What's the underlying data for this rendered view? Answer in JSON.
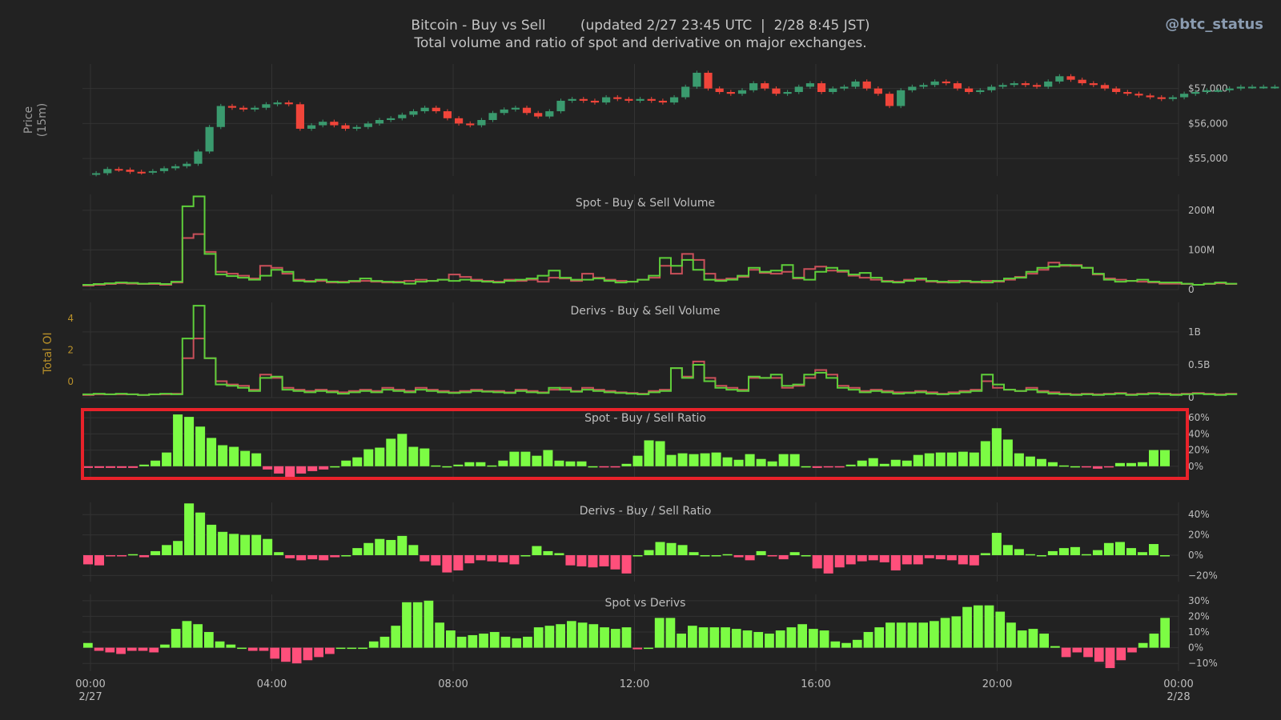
{
  "header": {
    "title": "Bitcoin - Buy vs Sell",
    "updated": "(updated 2/27 23:45 UTC  |  2/28 8:45 JST)",
    "subtitle": "Total volume and ratio of spot and derivative on major exchanges.",
    "handle": "@btc_status"
  },
  "colors": {
    "background": "#222222",
    "buy": "#7cfc44",
    "sell": "#ff4f7b",
    "candle_up": "#3a9a6e",
    "candle_down": "#f0453a",
    "buy_line": "#5ecf3a",
    "sell_line": "#c9505a",
    "oi": "#b8902a",
    "highlight": "#e8222a"
  },
  "x_ticks": [
    {
      "h": 0,
      "label": "00:00",
      "sub": "2/27"
    },
    {
      "h": 4,
      "label": "04:00",
      "sub": ""
    },
    {
      "h": 8,
      "label": "08:00",
      "sub": ""
    },
    {
      "h": 12,
      "label": "12:00",
      "sub": ""
    },
    {
      "h": 16,
      "label": "16:00",
      "sub": ""
    },
    {
      "h": 20,
      "label": "20:00",
      "sub": ""
    },
    {
      "h": 24,
      "label": "00:00",
      "sub": "2/28"
    }
  ],
  "chart_data": [
    {
      "id": "price",
      "type": "candlestick",
      "ylabel": "Price\n(15m)",
      "ylim": [
        54500,
        57700
      ],
      "yticks": [
        {
          "v": 55000,
          "label": "$55,000"
        },
        {
          "v": 56000,
          "label": "$56,000"
        },
        {
          "v": 57000,
          "label": "$57,000"
        }
      ],
      "x_start_hour": 0,
      "interval_hours": 0.25,
      "close": [
        54580,
        54700,
        54680,
        54620,
        54600,
        54640,
        54720,
        54780,
        54850,
        55200,
        55900,
        56500,
        56450,
        56400,
        56450,
        56550,
        56600,
        56550,
        55850,
        55950,
        56050,
        55950,
        55850,
        55900,
        56000,
        56100,
        56150,
        56250,
        56350,
        56450,
        56350,
        56150,
        56000,
        55950,
        56100,
        56300,
        56400,
        56450,
        56300,
        56200,
        56350,
        56650,
        56700,
        56650,
        56600,
        56750,
        56700,
        56650,
        56700,
        56650,
        56600,
        56750,
        57050,
        57450,
        57000,
        56900,
        56850,
        56950,
        57150,
        57000,
        56850,
        56900,
        57050,
        57150,
        56900,
        57000,
        57050,
        57200,
        57000,
        56850,
        56500,
        56950,
        57050,
        57100,
        57200,
        57150,
        57000,
        56900,
        56950,
        57050,
        57100,
        57150,
        57100,
        57050,
        57200,
        57350,
        57250,
        57150,
        57100,
        57000,
        56900,
        56850,
        56800,
        56750,
        56700,
        56750,
        56850,
        56900,
        56950,
        56950,
        57000,
        57050,
        57050,
        57050,
        57050,
        57050
      ]
    },
    {
      "id": "spot-volume",
      "type": "step-line",
      "title": "Spot - Buy & Sell Volume",
      "ylim": [
        0,
        240
      ],
      "yticks": [
        {
          "v": 0,
          "label": "0"
        },
        {
          "v": 100,
          "label": "100M"
        },
        {
          "v": 200,
          "label": "200M"
        }
      ],
      "series": [
        {
          "role": "buy",
          "values": [
            12,
            14,
            16,
            18,
            17,
            15,
            16,
            14,
            20,
            210,
            235,
            90,
            38,
            34,
            30,
            25,
            35,
            50,
            45,
            22,
            20,
            25,
            20,
            18,
            22,
            28,
            22,
            20,
            18,
            15,
            20,
            22,
            25,
            22,
            25,
            22,
            20,
            18,
            22,
            25,
            28,
            35,
            48,
            30,
            25,
            25,
            28,
            22,
            18,
            20,
            25,
            35,
            80,
            60,
            75,
            50,
            25,
            22,
            25,
            35,
            55,
            45,
            48,
            62,
            30,
            25,
            45,
            55,
            48,
            38,
            42,
            30,
            20,
            18,
            22,
            28,
            22,
            20,
            18,
            22,
            20,
            18,
            22,
            28,
            30,
            45,
            55,
            58,
            62,
            60,
            55,
            40,
            25,
            20,
            22,
            25,
            20,
            18,
            18,
            15,
            12,
            15,
            18,
            15
          ]
        },
        {
          "role": "sell",
          "values": [
            10,
            12,
            14,
            16,
            15,
            14,
            14,
            12,
            18,
            130,
            140,
            95,
            45,
            40,
            35,
            28,
            60,
            55,
            40,
            25,
            22,
            22,
            18,
            20,
            20,
            22,
            20,
            18,
            20,
            22,
            25,
            22,
            25,
            38,
            32,
            25,
            22,
            20,
            25,
            22,
            25,
            20,
            30,
            28,
            22,
            40,
            30,
            25,
            22,
            20,
            25,
            30,
            60,
            40,
            90,
            75,
            40,
            25,
            28,
            32,
            50,
            42,
            40,
            45,
            28,
            52,
            58,
            48,
            45,
            35,
            30,
            25,
            22,
            20,
            25,
            25,
            20,
            18,
            22,
            20,
            18,
            22,
            20,
            25,
            32,
            40,
            50,
            68,
            60,
            62,
            55,
            38,
            28,
            25,
            22,
            20,
            18,
            15,
            15,
            14,
            12,
            14,
            16,
            14
          ]
        }
      ]
    },
    {
      "id": "derivs-volume",
      "type": "step-line",
      "title": "Derivs - Buy & Sell Volume",
      "ylim": [
        0,
        1.45
      ],
      "yticks": [
        {
          "v": 0,
          "label": "0"
        },
        {
          "v": 0.5,
          "label": "0.5B"
        },
        {
          "v": 1,
          "label": "1B"
        }
      ],
      "secondary_axis": {
        "label": "Total OI",
        "ylim": [
          -1,
          5
        ],
        "ticks": [
          0,
          2,
          4
        ]
      },
      "series": [
        {
          "role": "buy",
          "values": [
            0.05,
            0.06,
            0.05,
            0.06,
            0.05,
            0.04,
            0.05,
            0.06,
            0.05,
            0.9,
            1.4,
            0.6,
            0.2,
            0.18,
            0.15,
            0.1,
            0.3,
            0.32,
            0.12,
            0.1,
            0.08,
            0.1,
            0.08,
            0.06,
            0.08,
            0.1,
            0.08,
            0.12,
            0.1,
            0.08,
            0.12,
            0.1,
            0.08,
            0.07,
            0.08,
            0.1,
            0.09,
            0.08,
            0.07,
            0.1,
            0.08,
            0.07,
            0.15,
            0.12,
            0.09,
            0.12,
            0.1,
            0.08,
            0.07,
            0.06,
            0.05,
            0.08,
            0.1,
            0.45,
            0.3,
            0.5,
            0.25,
            0.15,
            0.12,
            0.1,
            0.32,
            0.3,
            0.35,
            0.18,
            0.2,
            0.35,
            0.38,
            0.3,
            0.15,
            0.12,
            0.08,
            0.1,
            0.08,
            0.06,
            0.07,
            0.08,
            0.06,
            0.05,
            0.06,
            0.08,
            0.1,
            0.35,
            0.2,
            0.12,
            0.1,
            0.12,
            0.08,
            0.06,
            0.05,
            0.04,
            0.05,
            0.04,
            0.05,
            0.06,
            0.04,
            0.05,
            0.06,
            0.05,
            0.04,
            0.05,
            0.06,
            0.05,
            0.04,
            0.05
          ]
        },
        {
          "role": "sell",
          "values": [
            0.04,
            0.05,
            0.05,
            0.05,
            0.05,
            0.04,
            0.05,
            0.05,
            0.06,
            0.6,
            0.9,
            0.6,
            0.25,
            0.2,
            0.18,
            0.12,
            0.35,
            0.3,
            0.15,
            0.12,
            0.1,
            0.12,
            0.1,
            0.08,
            0.1,
            0.12,
            0.1,
            0.15,
            0.12,
            0.1,
            0.15,
            0.12,
            0.1,
            0.08,
            0.1,
            0.12,
            0.1,
            0.1,
            0.08,
            0.12,
            0.1,
            0.08,
            0.12,
            0.15,
            0.1,
            0.15,
            0.12,
            0.1,
            0.08,
            0.07,
            0.06,
            0.1,
            0.12,
            0.45,
            0.32,
            0.55,
            0.3,
            0.18,
            0.15,
            0.12,
            0.3,
            0.3,
            0.3,
            0.15,
            0.18,
            0.3,
            0.42,
            0.35,
            0.18,
            0.15,
            0.1,
            0.12,
            0.1,
            0.08,
            0.08,
            0.1,
            0.08,
            0.06,
            0.08,
            0.1,
            0.12,
            0.25,
            0.15,
            0.12,
            0.1,
            0.15,
            0.1,
            0.08,
            0.06,
            0.05,
            0.06,
            0.05,
            0.06,
            0.07,
            0.05,
            0.06,
            0.07,
            0.06,
            0.05,
            0.06,
            0.07,
            0.06,
            0.05,
            0.06
          ]
        }
      ]
    },
    {
      "id": "spot-ratio",
      "type": "bar",
      "title": "Spot - Buy / Sell Ratio",
      "highlighted": true,
      "ylim": [
        -0.15,
        0.7
      ],
      "yticks": [
        {
          "v": 0,
          "label": "0%"
        },
        {
          "v": 0.2,
          "label": "20%"
        },
        {
          "v": 0.4,
          "label": "40%"
        },
        {
          "v": 0.6,
          "label": "60%"
        }
      ],
      "values": [
        -0.02,
        -0.02,
        -0.02,
        -0.02,
        -0.02,
        0.02,
        0.07,
        0.17,
        0.64,
        0.61,
        0.49,
        0.35,
        0.26,
        0.24,
        0.19,
        0.16,
        -0.04,
        -0.09,
        -0.13,
        -0.09,
        -0.06,
        -0.04,
        0,
        0.07,
        0.11,
        0.21,
        0.23,
        0.34,
        0.4,
        0.24,
        0.22,
        0.01,
        0,
        0.02,
        0.05,
        0.05,
        0.01,
        0.07,
        0.18,
        0.18,
        0.13,
        0.2,
        0.07,
        0.06,
        0.06,
        0,
        -0.01,
        -0.01,
        0.03,
        0.13,
        0.32,
        0.31,
        0.14,
        0.16,
        0.15,
        0.16,
        0.17,
        0.11,
        0.08,
        0.15,
        0.09,
        0.06,
        0.15,
        0.15,
        0,
        -0.02,
        -0.01,
        -0.01,
        0.02,
        0.07,
        0.1,
        0.03,
        0.08,
        0.07,
        0.14,
        0.16,
        0.17,
        0.17,
        0.18,
        0.17,
        0.31,
        0.47,
        0.33,
        0.16,
        0.12,
        0.09,
        0.05,
        0.01,
        0,
        -0.01,
        -0.03,
        -0.01,
        0.04,
        0.04,
        0.05,
        0.2,
        0.2
      ]
    },
    {
      "id": "derivs-ratio",
      "type": "bar",
      "title": "Derivs - Buy / Sell Ratio",
      "ylim": [
        -0.26,
        0.52
      ],
      "yticks": [
        {
          "v": -0.2,
          "label": "−20%"
        },
        {
          "v": 0,
          "label": "0%"
        },
        {
          "v": 0.2,
          "label": "20%"
        },
        {
          "v": 0.4,
          "label": "40%"
        }
      ],
      "values": [
        -0.09,
        -0.1,
        -0.01,
        -0.01,
        0.01,
        -0.02,
        0.04,
        0.1,
        0.14,
        0.51,
        0.42,
        0.3,
        0.23,
        0.21,
        0.2,
        0.2,
        0.16,
        0.03,
        -0.03,
        -0.05,
        -0.04,
        -0.05,
        -0.02,
        0,
        0.07,
        0.12,
        0.16,
        0.15,
        0.19,
        0.1,
        -0.06,
        -0.1,
        -0.17,
        -0.15,
        -0.08,
        -0.05,
        -0.06,
        -0.07,
        -0.09,
        0,
        0.09,
        0.04,
        0.02,
        -0.1,
        -0.11,
        -0.12,
        -0.11,
        -0.14,
        -0.18,
        0,
        0.05,
        0.13,
        0.12,
        0.1,
        0.03,
        0,
        0,
        0.01,
        -0.02,
        -0.05,
        0.04,
        -0.01,
        -0.04,
        0.03,
        0,
        -0.13,
        -0.18,
        -0.12,
        -0.09,
        -0.06,
        -0.05,
        -0.07,
        -0.15,
        -0.09,
        -0.09,
        -0.03,
        -0.04,
        -0.05,
        -0.09,
        -0.1,
        0.02,
        0.22,
        0.1,
        0.06,
        0.01,
        0,
        0.04,
        0.07,
        0.08,
        0.01,
        0.05,
        0.12,
        0.13,
        0.07,
        0.03,
        0.11,
        0
      ]
    },
    {
      "id": "spot-vs-derivs",
      "type": "bar",
      "title": "Spot vs Derivs",
      "ylim": [
        -0.15,
        0.34
      ],
      "yticks": [
        {
          "v": -0.1,
          "label": "−10%"
        },
        {
          "v": 0,
          "label": "0%"
        },
        {
          "v": 0.1,
          "label": "10%"
        },
        {
          "v": 0.2,
          "label": "20%"
        },
        {
          "v": 0.3,
          "label": "30%"
        }
      ],
      "values": [
        0.03,
        -0.02,
        -0.03,
        -0.04,
        -0.02,
        -0.02,
        -0.03,
        0.02,
        0.12,
        0.17,
        0.15,
        0.1,
        0.04,
        0.02,
        0,
        -0.02,
        -0.02,
        -0.07,
        -0.09,
        -0.1,
        -0.08,
        -0.06,
        -0.04,
        0,
        0,
        0,
        0.04,
        0.07,
        0.14,
        0.29,
        0.29,
        0.3,
        0.16,
        0.11,
        0.07,
        0.08,
        0.09,
        0.1,
        0.07,
        0.06,
        0.07,
        0.13,
        0.14,
        0.15,
        0.17,
        0.16,
        0.15,
        0.13,
        0.12,
        0.13,
        -0.01,
        0,
        0.19,
        0.19,
        0.09,
        0.14,
        0.13,
        0.13,
        0.13,
        0.12,
        0.11,
        0.1,
        0.09,
        0.11,
        0.13,
        0.15,
        0.12,
        0.11,
        0.04,
        0.03,
        0.05,
        0.1,
        0.13,
        0.16,
        0.16,
        0.16,
        0.16,
        0.17,
        0.19,
        0.2,
        0.26,
        0.27,
        0.27,
        0.23,
        0.16,
        0.11,
        0.12,
        0.09,
        0.01,
        -0.06,
        -0.03,
        -0.06,
        -0.09,
        -0.13,
        -0.08,
        -0.03,
        0.03,
        0.09,
        0.19
      ]
    }
  ]
}
